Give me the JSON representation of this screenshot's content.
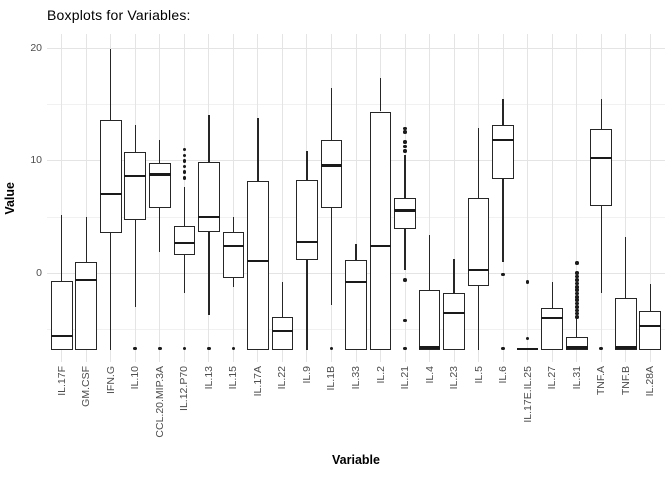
{
  "title": "Boxplots for Variables:",
  "y_axis": {
    "label": "Value",
    "major_ticks": [
      0,
      10,
      20
    ],
    "minor_ticks": [
      -5,
      5,
      15
    ]
  },
  "x_axis": {
    "label": "Variable"
  },
  "colors": {
    "background": "#ffffff",
    "grid_major": "#e4e4e4",
    "grid_minor": "#f1f1f1",
    "box_border": "#262626",
    "median": "#1a1a1a",
    "whisker": "#262626",
    "outlier": "#1a1a1a",
    "axis_text": "#4d4d4d",
    "title_text": "#000000"
  },
  "chart_data": {
    "type": "boxplot",
    "title": "Boxplots for Variables:",
    "xlabel": "Variable",
    "ylabel": "Value",
    "ylim": [
      -7.9,
      21.3
    ],
    "grid": true,
    "categories": [
      "IL.17F",
      "GM.CSF",
      "IFN.G",
      "IL.10",
      "CCL.20.MIP.3A",
      "IL.12.P70",
      "IL.13",
      "IL.15",
      "IL.17A",
      "IL.22",
      "IL.9",
      "IL.1B",
      "IL.33",
      "IL.2",
      "IL.21",
      "IL.4",
      "IL.23",
      "IL.5",
      "IL.6",
      "IL.17E.IL.25",
      "IL.27",
      "IL.31",
      "TNF.A",
      "TNF.B",
      "IL.28A"
    ],
    "series": [
      {
        "name": "IL.17F",
        "whisker_low": -6.8,
        "q1": -6.8,
        "median": -5.6,
        "q3": -0.7,
        "whisker_high": 5.2,
        "outliers": []
      },
      {
        "name": "GM.CSF",
        "whisker_low": -6.8,
        "q1": -6.8,
        "median": -0.6,
        "q3": 1.0,
        "whisker_high": 5.0,
        "outliers": []
      },
      {
        "name": "IFN.G",
        "whisker_low": -6.8,
        "q1": 3.6,
        "median": 7.1,
        "q3": 13.6,
        "whisker_high": 20.0,
        "outliers": []
      },
      {
        "name": "IL.10",
        "whisker_low": -3.0,
        "q1": 4.7,
        "median": 8.7,
        "q3": 10.8,
        "whisker_high": 13.2,
        "outliers": [
          -6.7
        ]
      },
      {
        "name": "CCL.20.MIP.3A",
        "whisker_low": 1.9,
        "q1": 5.8,
        "median": 8.8,
        "q3": 9.8,
        "whisker_high": 11.9,
        "outliers": [
          -6.7
        ]
      },
      {
        "name": "IL.12.P70",
        "whisker_low": -1.8,
        "q1": 1.6,
        "median": 2.7,
        "q3": 4.2,
        "whisker_high": 7.7,
        "outliers": [
          11.0,
          10.5,
          10.0,
          9.5,
          9.0,
          8.5,
          -6.7
        ]
      },
      {
        "name": "IL.13",
        "whisker_low": -3.7,
        "q1": 3.7,
        "median": 5.0,
        "q3": 9.9,
        "whisker_high": 14.1,
        "outliers": [
          -6.7
        ]
      },
      {
        "name": "IL.15",
        "whisker_low": -1.2,
        "q1": -0.4,
        "median": 2.4,
        "q3": 3.7,
        "whisker_high": 5.0,
        "outliers": [
          -6.7
        ]
      },
      {
        "name": "IL.17A",
        "whisker_low": -6.8,
        "q1": -6.8,
        "median": 1.1,
        "q3": 8.2,
        "whisker_high": 13.8,
        "outliers": []
      },
      {
        "name": "IL.22",
        "whisker_low": -6.8,
        "q1": -6.8,
        "median": -5.1,
        "q3": -3.9,
        "whisker_high": -0.8,
        "outliers": []
      },
      {
        "name": "IL.9",
        "whisker_low": -6.8,
        "q1": 1.2,
        "median": 2.8,
        "q3": 8.3,
        "whisker_high": 10.9,
        "outliers": []
      },
      {
        "name": "IL.1B",
        "whisker_low": -2.8,
        "q1": 5.8,
        "median": 9.6,
        "q3": 11.9,
        "whisker_high": 16.5,
        "outliers": [
          -6.7
        ]
      },
      {
        "name": "IL.33",
        "whisker_low": -6.8,
        "q1": -6.8,
        "median": -0.8,
        "q3": 1.2,
        "whisker_high": 2.6,
        "outliers": []
      },
      {
        "name": "IL.2",
        "whisker_low": -6.8,
        "q1": -6.8,
        "median": 2.4,
        "q3": 14.4,
        "whisker_high": 17.4,
        "outliers": []
      },
      {
        "name": "IL.21",
        "whisker_low": 0.3,
        "q1": 3.9,
        "median": 5.6,
        "q3": 6.7,
        "whisker_high": 10.5,
        "outliers": [
          12.9,
          12.6,
          11.7,
          11.3,
          10.9,
          -0.6,
          -4.2,
          -6.7
        ]
      },
      {
        "name": "IL.4",
        "whisker_low": -6.8,
        "q1": -6.8,
        "median": -6.6,
        "q3": -1.5,
        "whisker_high": 3.4,
        "outliers": []
      },
      {
        "name": "IL.23",
        "whisker_low": -6.8,
        "q1": -6.8,
        "median": -3.5,
        "q3": -1.8,
        "whisker_high": 1.3,
        "outliers": []
      },
      {
        "name": "IL.5",
        "whisker_low": -6.8,
        "q1": -1.1,
        "median": 0.3,
        "q3": 6.7,
        "whisker_high": 12.9,
        "outliers": []
      },
      {
        "name": "IL.6",
        "whisker_low": 1.0,
        "q1": 8.4,
        "median": 11.9,
        "q3": 13.2,
        "whisker_high": 15.5,
        "outliers": [
          -0.1,
          -6.7
        ]
      },
      {
        "name": "IL.17E.IL.25",
        "whisker_low": -6.7,
        "q1": -6.7,
        "median": -6.7,
        "q3": -6.7,
        "whisker_high": -6.7,
        "outliers": [
          -0.8,
          -5.8
        ]
      },
      {
        "name": "IL.27",
        "whisker_low": -6.8,
        "q1": -6.8,
        "median": -4.0,
        "q3": -3.1,
        "whisker_high": -0.8,
        "outliers": []
      },
      {
        "name": "IL.31",
        "whisker_low": -6.8,
        "q1": -6.8,
        "median": -6.6,
        "q3": -5.7,
        "whisker_high": -4.0,
        "outliers": [
          0.9,
          0.0,
          -0.3,
          -0.6,
          -0.9,
          -1.2,
          -1.5,
          -1.8,
          -2.1,
          -2.4,
          -2.7,
          -3.0,
          -3.3,
          -3.6,
          -3.9
        ]
      },
      {
        "name": "TNF.A",
        "whisker_low": -1.8,
        "q1": 6.0,
        "median": 10.3,
        "q3": 12.8,
        "whisker_high": 15.5,
        "outliers": [
          -6.7
        ]
      },
      {
        "name": "TNF.B",
        "whisker_low": -6.8,
        "q1": -6.8,
        "median": -6.6,
        "q3": -2.2,
        "whisker_high": 3.2,
        "outliers": []
      },
      {
        "name": "IL.28A",
        "whisker_low": -6.8,
        "q1": -6.8,
        "median": -4.7,
        "q3": -3.4,
        "whisker_high": -1.0,
        "outliers": []
      }
    ]
  }
}
